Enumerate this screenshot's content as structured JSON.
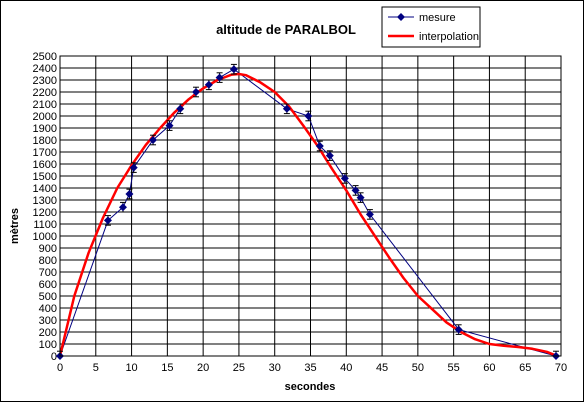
{
  "chart_data": {
    "type": "line",
    "title": "altitude de PARALBOL",
    "xlabel": "secondes",
    "ylabel": "mètres",
    "xlim": [
      0,
      70
    ],
    "ylim": [
      0,
      2500
    ],
    "x_ticks": [
      0,
      5,
      10,
      15,
      20,
      25,
      30,
      35,
      40,
      45,
      50,
      55,
      60,
      65,
      70
    ],
    "y_ticks": [
      0,
      100,
      200,
      300,
      400,
      500,
      600,
      700,
      800,
      900,
      1000,
      1100,
      1200,
      1300,
      1400,
      1500,
      1600,
      1700,
      1800,
      1900,
      2000,
      2100,
      2200,
      2300,
      2400,
      2500
    ],
    "grid": true,
    "legend_position": "top-right",
    "series": [
      {
        "name": "mesure",
        "color": "#000080",
        "marker": "diamond",
        "error_bar": 40,
        "x": [
          0,
          6.7,
          8.8,
          9.7,
          10.3,
          13,
          15.3,
          16.8,
          19,
          20.8,
          22.3,
          24.3,
          31.7,
          34.7,
          36.3,
          37.7,
          39.8,
          41.3,
          42,
          43.3,
          55.7,
          69.3
        ],
        "y": [
          0,
          1130,
          1240,
          1350,
          1570,
          1800,
          1920,
          2060,
          2200,
          2260,
          2320,
          2390,
          2060,
          2000,
          1750,
          1670,
          1480,
          1380,
          1320,
          1180,
          220,
          0
        ]
      },
      {
        "name": "interpolation",
        "color": "#ff0000",
        "x": [
          0,
          2,
          4,
          6,
          8,
          10,
          12,
          14,
          16,
          18,
          20,
          22,
          24,
          25,
          26,
          28,
          30,
          32,
          34,
          36,
          38,
          40,
          42,
          44,
          46,
          48,
          50,
          52,
          54,
          56,
          58,
          60,
          62,
          64,
          66,
          68,
          69.5
        ],
        "y": [
          0,
          500,
          860,
          1150,
          1400,
          1590,
          1760,
          1900,
          2030,
          2140,
          2230,
          2300,
          2345,
          2350,
          2340,
          2280,
          2200,
          2080,
          1920,
          1750,
          1560,
          1380,
          1180,
          1000,
          820,
          650,
          500,
          390,
          280,
          200,
          140,
          100,
          85,
          75,
          60,
          35,
          0
        ]
      }
    ]
  }
}
